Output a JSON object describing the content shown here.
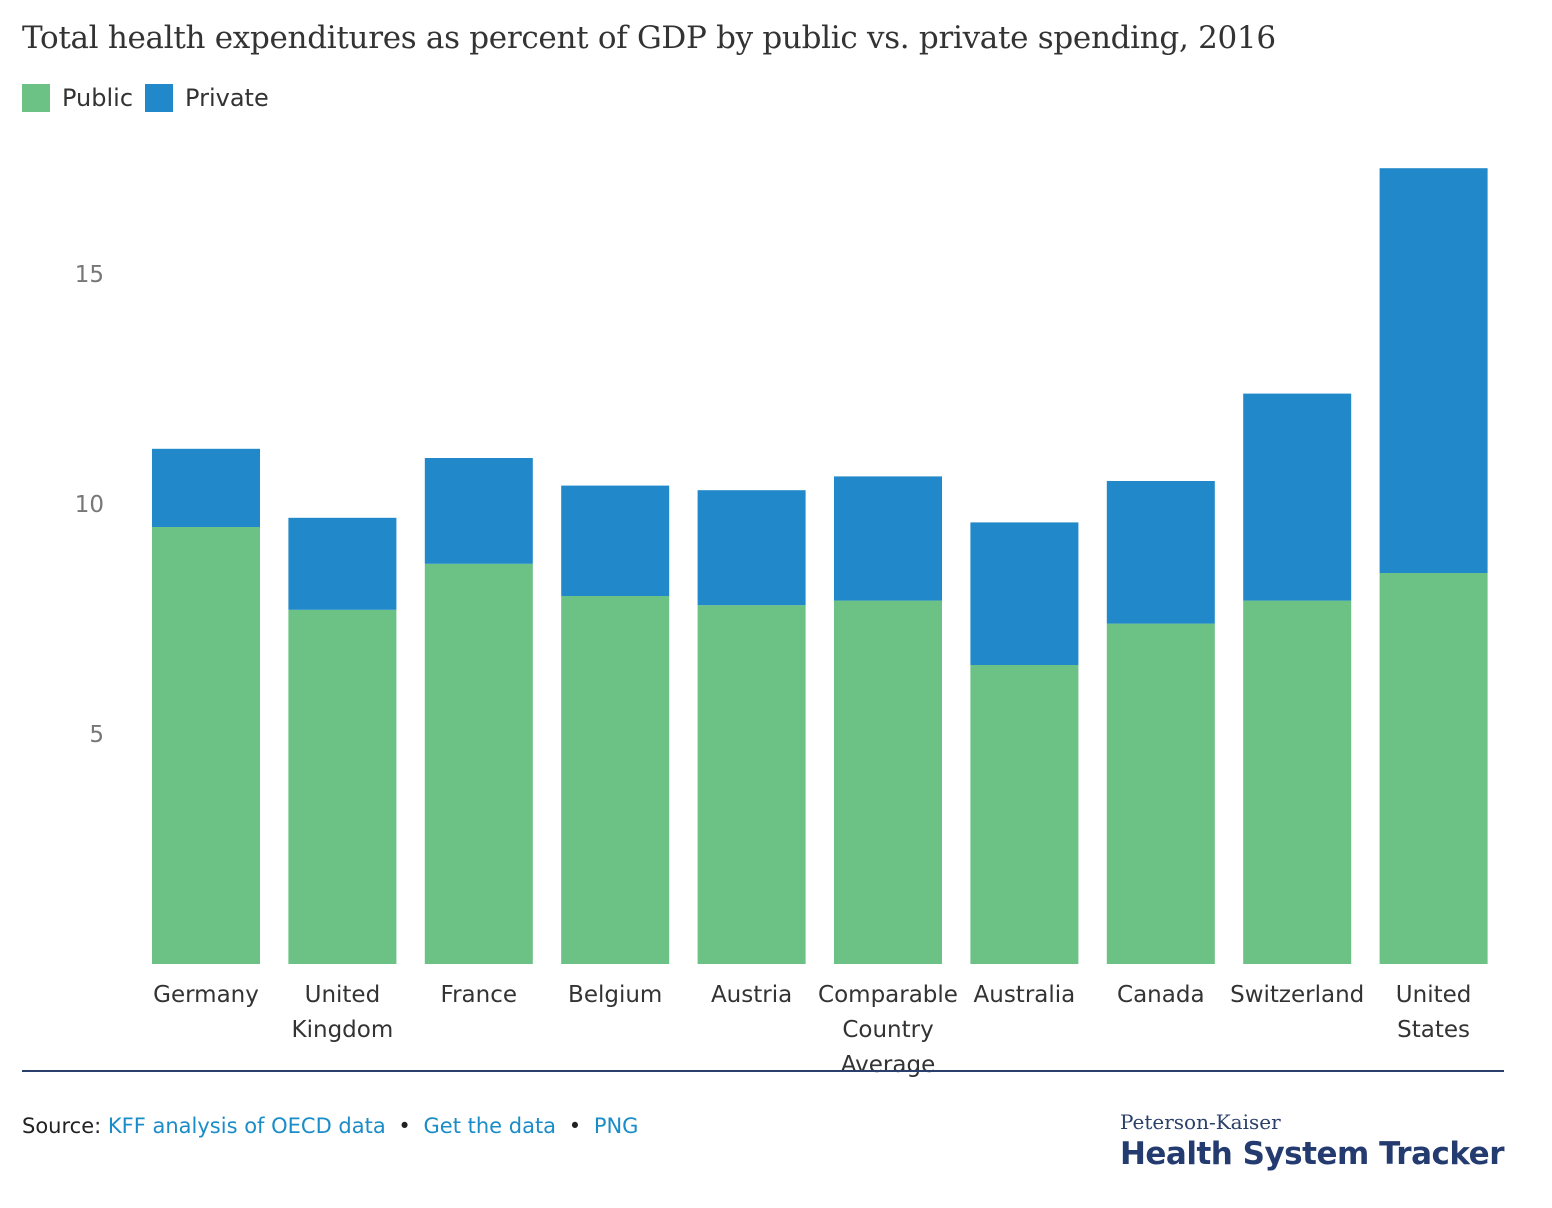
{
  "title": "Total health expenditures as percent of GDP by public vs. private spending, 2016",
  "legend": [
    {
      "label": "Public",
      "color": "#6cc184"
    },
    {
      "label": "Private",
      "color": "#2189c9"
    }
  ],
  "chart_data": {
    "type": "bar",
    "stacked": true,
    "title": "Total health expenditures as percent of GDP by public vs. private spending, 2016",
    "categories": [
      [
        "Germany"
      ],
      [
        "United",
        "Kingdom"
      ],
      [
        "France"
      ],
      [
        "Belgium"
      ],
      [
        "Austria"
      ],
      [
        "Comparable",
        "Country",
        "Average"
      ],
      [
        "Australia"
      ],
      [
        "Canada"
      ],
      [
        "Switzerland"
      ],
      [
        "United",
        "States"
      ]
    ],
    "series": [
      {
        "name": "Public",
        "color": "#6cc184",
        "values": [
          9.5,
          7.7,
          8.7,
          8.0,
          7.8,
          7.9,
          6.5,
          7.4,
          7.9,
          8.5
        ]
      },
      {
        "name": "Private",
        "color": "#2189c9",
        "values": [
          1.7,
          2.0,
          2.3,
          2.4,
          2.5,
          2.7,
          3.1,
          3.1,
          4.5,
          8.8
        ]
      }
    ],
    "yticks": [
      5,
      10,
      15
    ],
    "ylim": [
      0,
      18
    ],
    "grid": false,
    "legend_position": "top-left"
  },
  "footer": {
    "source_label": "Source:",
    "links": [
      "KFF analysis of OECD data",
      "Get the data",
      "PNG"
    ],
    "separator": "•"
  },
  "brand": {
    "top": "Peterson-Kaiser",
    "main": "Health System Tracker"
  }
}
